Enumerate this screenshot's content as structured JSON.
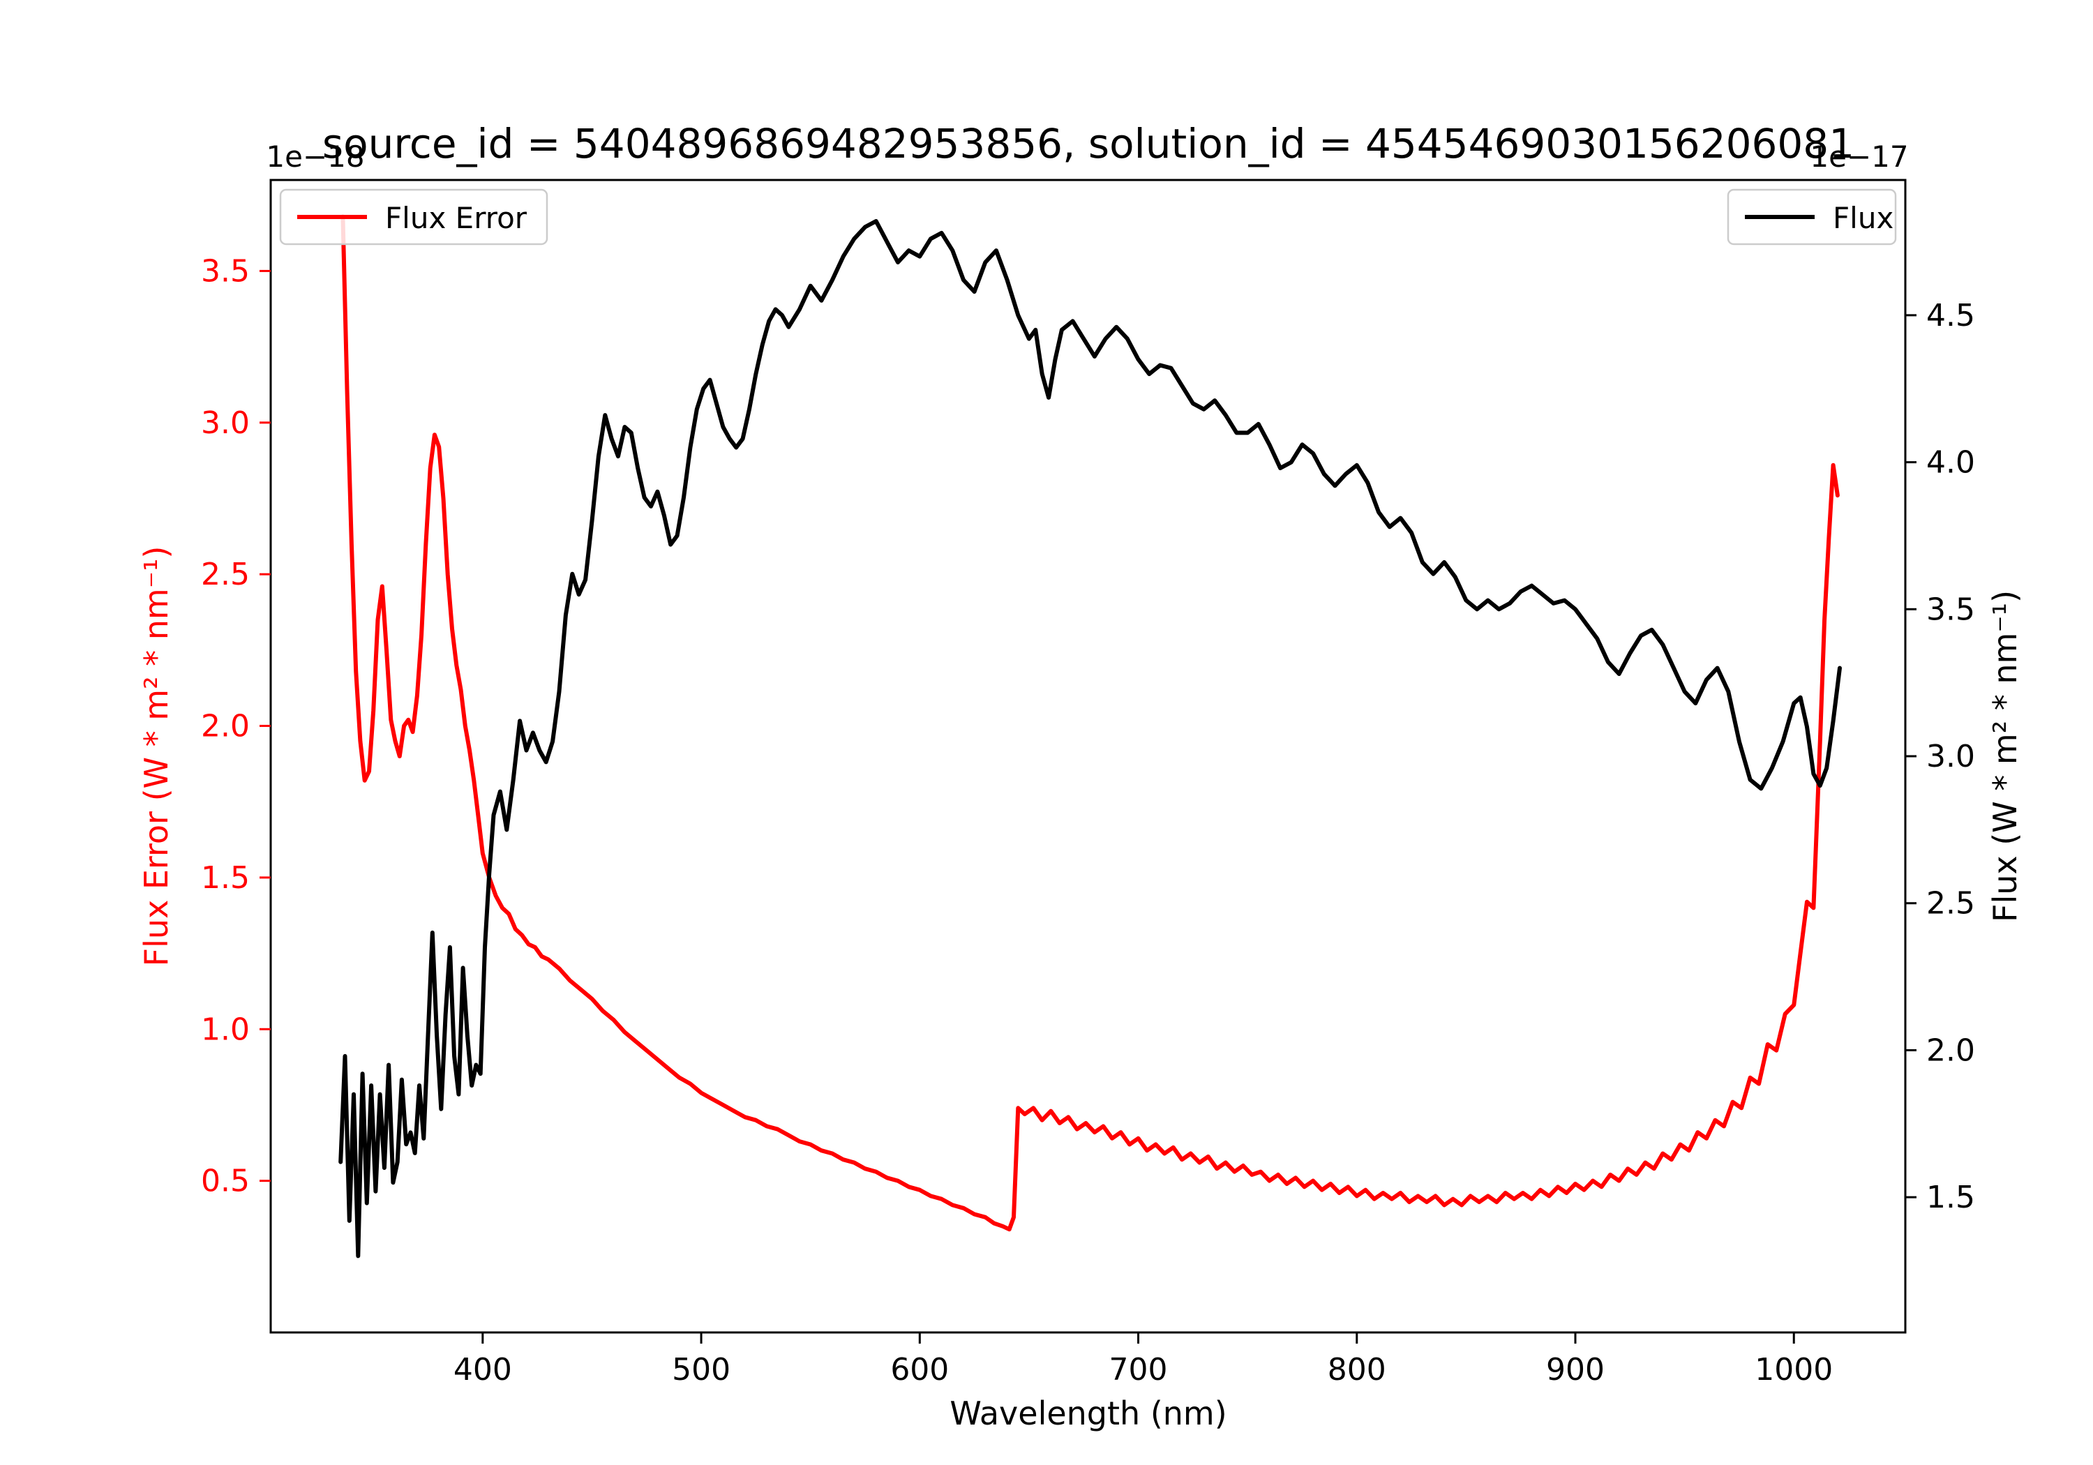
{
  "figure": {
    "background": "#ffffff"
  },
  "chart_data": {
    "type": "line",
    "title": "source_id = 5404896869482953856, solution_id = 4545469030156206081",
    "xlabel": "Wavelength (nm)",
    "xlim": [
      303,
      1051
    ],
    "x_ticks": [
      400,
      500,
      600,
      700,
      800,
      900,
      1000
    ],
    "grid": false,
    "axes": {
      "left": {
        "label": "Flux Error (W * m² * nm⁻¹)",
        "offset_text": "1e−18",
        "color": "#ff0000",
        "ylim": [
          0.0,
          3.8
        ],
        "ticks": [
          0.5,
          1.0,
          1.5,
          2.0,
          2.5,
          3.0,
          3.5
        ]
      },
      "right": {
        "label": "Flux (W * m² * nm⁻¹)",
        "offset_text": "1e−17",
        "color": "#000000",
        "ylim": [
          1.04,
          4.96
        ],
        "ticks": [
          1.5,
          2.0,
          2.5,
          3.0,
          3.5,
          4.0,
          4.5
        ]
      }
    },
    "legends": [
      {
        "label": "Flux Error",
        "position": "upper left",
        "color": "#ff0000"
      },
      {
        "label": "Flux",
        "position": "upper right",
        "color": "#000000"
      }
    ],
    "series": [
      {
        "name": "Flux Error",
        "axis": "left",
        "color": "#ff0000",
        "units_scale": "1e-18 W * m^2 * nm^-1",
        "x": [
          336,
          338,
          340,
          342,
          344,
          346,
          348,
          350,
          352,
          354,
          356,
          358,
          360,
          362,
          364,
          366,
          368,
          370,
          372,
          374,
          376,
          378,
          380,
          382,
          384,
          386,
          388,
          390,
          392,
          394,
          396,
          398,
          400,
          403,
          406,
          409,
          412,
          415,
          418,
          421,
          424,
          427,
          430,
          435,
          440,
          445,
          450,
          455,
          460,
          465,
          470,
          475,
          480,
          485,
          490,
          495,
          500,
          505,
          510,
          515,
          520,
          525,
          530,
          535,
          540,
          545,
          550,
          555,
          560,
          565,
          570,
          575,
          580,
          585,
          590,
          595,
          600,
          605,
          610,
          615,
          620,
          625,
          630,
          634,
          638,
          641,
          643,
          645,
          648,
          652,
          656,
          660,
          664,
          668,
          672,
          676,
          680,
          684,
          688,
          692,
          696,
          700,
          704,
          708,
          712,
          716,
          720,
          724,
          728,
          732,
          736,
          740,
          744,
          748,
          752,
          756,
          760,
          764,
          768,
          772,
          776,
          780,
          784,
          788,
          792,
          796,
          800,
          804,
          808,
          812,
          816,
          820,
          824,
          828,
          832,
          836,
          840,
          844,
          848,
          852,
          856,
          860,
          864,
          868,
          872,
          876,
          880,
          884,
          888,
          892,
          896,
          900,
          904,
          908,
          912,
          916,
          920,
          924,
          928,
          932,
          936,
          940,
          944,
          948,
          952,
          956,
          960,
          964,
          968,
          972,
          976,
          980,
          984,
          988,
          992,
          996,
          1000,
          1003,
          1006,
          1009,
          1012,
          1014,
          1016,
          1018,
          1020
        ],
        "y": [
          3.68,
          3.1,
          2.6,
          2.18,
          1.95,
          1.82,
          1.85,
          2.05,
          2.35,
          2.46,
          2.25,
          2.02,
          1.95,
          1.9,
          2.0,
          2.02,
          1.98,
          2.1,
          2.3,
          2.6,
          2.85,
          2.96,
          2.92,
          2.75,
          2.5,
          2.32,
          2.2,
          2.12,
          2.0,
          1.92,
          1.82,
          1.7,
          1.58,
          1.5,
          1.44,
          1.4,
          1.38,
          1.33,
          1.31,
          1.28,
          1.27,
          1.24,
          1.23,
          1.2,
          1.16,
          1.13,
          1.1,
          1.06,
          1.03,
          0.99,
          0.96,
          0.93,
          0.9,
          0.87,
          0.84,
          0.82,
          0.79,
          0.77,
          0.75,
          0.73,
          0.71,
          0.7,
          0.68,
          0.67,
          0.65,
          0.63,
          0.62,
          0.6,
          0.59,
          0.57,
          0.56,
          0.54,
          0.53,
          0.51,
          0.5,
          0.48,
          0.47,
          0.45,
          0.44,
          0.42,
          0.41,
          0.39,
          0.38,
          0.36,
          0.35,
          0.34,
          0.38,
          0.74,
          0.72,
          0.74,
          0.7,
          0.73,
          0.69,
          0.71,
          0.67,
          0.69,
          0.66,
          0.68,
          0.64,
          0.66,
          0.62,
          0.64,
          0.6,
          0.62,
          0.59,
          0.61,
          0.57,
          0.59,
          0.56,
          0.58,
          0.54,
          0.56,
          0.53,
          0.55,
          0.52,
          0.53,
          0.5,
          0.52,
          0.49,
          0.51,
          0.48,
          0.5,
          0.47,
          0.49,
          0.46,
          0.48,
          0.45,
          0.47,
          0.44,
          0.46,
          0.44,
          0.46,
          0.43,
          0.45,
          0.43,
          0.45,
          0.42,
          0.44,
          0.42,
          0.45,
          0.43,
          0.45,
          0.43,
          0.46,
          0.44,
          0.46,
          0.44,
          0.47,
          0.45,
          0.48,
          0.46,
          0.49,
          0.47,
          0.5,
          0.48,
          0.52,
          0.5,
          0.54,
          0.52,
          0.56,
          0.54,
          0.59,
          0.57,
          0.62,
          0.6,
          0.66,
          0.64,
          0.7,
          0.68,
          0.76,
          0.74,
          0.84,
          0.82,
          0.95,
          0.93,
          1.05,
          1.08,
          1.25,
          1.42,
          1.4,
          1.95,
          2.35,
          2.62,
          2.86,
          2.76
        ]
      },
      {
        "name": "Flux",
        "axis": "right",
        "color": "#000000",
        "units_scale": "1e-17 W * m^2 * nm^-1",
        "x": [
          335,
          337,
          339,
          341,
          343,
          345,
          347,
          349,
          351,
          353,
          355,
          357,
          359,
          361,
          363,
          365,
          367,
          369,
          371,
          373,
          375,
          377,
          379,
          381,
          383,
          385,
          387,
          389,
          391,
          393,
          395,
          397,
          399,
          401,
          403,
          405,
          408,
          411,
          414,
          417,
          420,
          423,
          426,
          429,
          432,
          435,
          438,
          441,
          444,
          447,
          450,
          453,
          456,
          459,
          462,
          465,
          468,
          471,
          474,
          477,
          480,
          483,
          486,
          489,
          492,
          495,
          498,
          501,
          504,
          507,
          510,
          513,
          516,
          519,
          522,
          525,
          528,
          531,
          534,
          537,
          540,
          545,
          550,
          555,
          560,
          565,
          570,
          575,
          580,
          585,
          590,
          595,
          600,
          605,
          610,
          615,
          620,
          625,
          630,
          635,
          640,
          645,
          650,
          653,
          656,
          659,
          662,
          665,
          670,
          675,
          680,
          685,
          690,
          695,
          700,
          705,
          710,
          715,
          720,
          725,
          730,
          735,
          740,
          745,
          750,
          755,
          760,
          765,
          770,
          775,
          780,
          785,
          790,
          795,
          800,
          805,
          810,
          815,
          820,
          825,
          830,
          835,
          840,
          845,
          850,
          855,
          860,
          865,
          870,
          875,
          880,
          885,
          890,
          895,
          900,
          905,
          910,
          915,
          920,
          925,
          930,
          935,
          940,
          945,
          950,
          955,
          960,
          965,
          970,
          975,
          980,
          985,
          990,
          995,
          1000,
          1003,
          1006,
          1009,
          1012,
          1015,
          1018,
          1021
        ],
        "y": [
          1.62,
          1.98,
          1.42,
          1.85,
          1.3,
          1.92,
          1.48,
          1.88,
          1.52,
          1.85,
          1.6,
          1.95,
          1.55,
          1.62,
          1.9,
          1.68,
          1.72,
          1.65,
          1.88,
          1.7,
          2.05,
          2.4,
          2.05,
          1.8,
          2.12,
          2.35,
          1.98,
          1.85,
          2.28,
          2.05,
          1.88,
          1.95,
          1.92,
          2.35,
          2.6,
          2.8,
          2.88,
          2.75,
          2.92,
          3.12,
          3.02,
          3.08,
          3.02,
          2.98,
          3.05,
          3.22,
          3.48,
          3.62,
          3.55,
          3.6,
          3.8,
          4.02,
          4.16,
          4.08,
          4.02,
          4.12,
          4.1,
          3.98,
          3.88,
          3.85,
          3.9,
          3.82,
          3.72,
          3.75,
          3.88,
          4.05,
          4.18,
          4.25,
          4.28,
          4.2,
          4.12,
          4.08,
          4.05,
          4.08,
          4.18,
          4.3,
          4.4,
          4.48,
          4.52,
          4.5,
          4.46,
          4.52,
          4.6,
          4.55,
          4.62,
          4.7,
          4.76,
          4.8,
          4.82,
          4.75,
          4.68,
          4.72,
          4.7,
          4.76,
          4.78,
          4.72,
          4.62,
          4.58,
          4.68,
          4.72,
          4.62,
          4.5,
          4.42,
          4.45,
          4.3,
          4.22,
          4.35,
          4.45,
          4.48,
          4.42,
          4.36,
          4.42,
          4.46,
          4.42,
          4.35,
          4.3,
          4.33,
          4.32,
          4.26,
          4.2,
          4.18,
          4.21,
          4.16,
          4.1,
          4.1,
          4.13,
          4.06,
          3.98,
          4.0,
          4.06,
          4.03,
          3.96,
          3.92,
          3.96,
          3.99,
          3.93,
          3.83,
          3.78,
          3.81,
          3.76,
          3.66,
          3.62,
          3.66,
          3.61,
          3.53,
          3.5,
          3.53,
          3.5,
          3.52,
          3.56,
          3.58,
          3.55,
          3.52,
          3.53,
          3.5,
          3.45,
          3.4,
          3.32,
          3.28,
          3.35,
          3.41,
          3.43,
          3.38,
          3.3,
          3.22,
          3.18,
          3.26,
          3.3,
          3.22,
          3.05,
          2.92,
          2.89,
          2.96,
          3.05,
          3.18,
          3.2,
          3.1,
          2.94,
          2.9,
          2.96,
          3.12,
          3.3
        ]
      }
    ]
  }
}
